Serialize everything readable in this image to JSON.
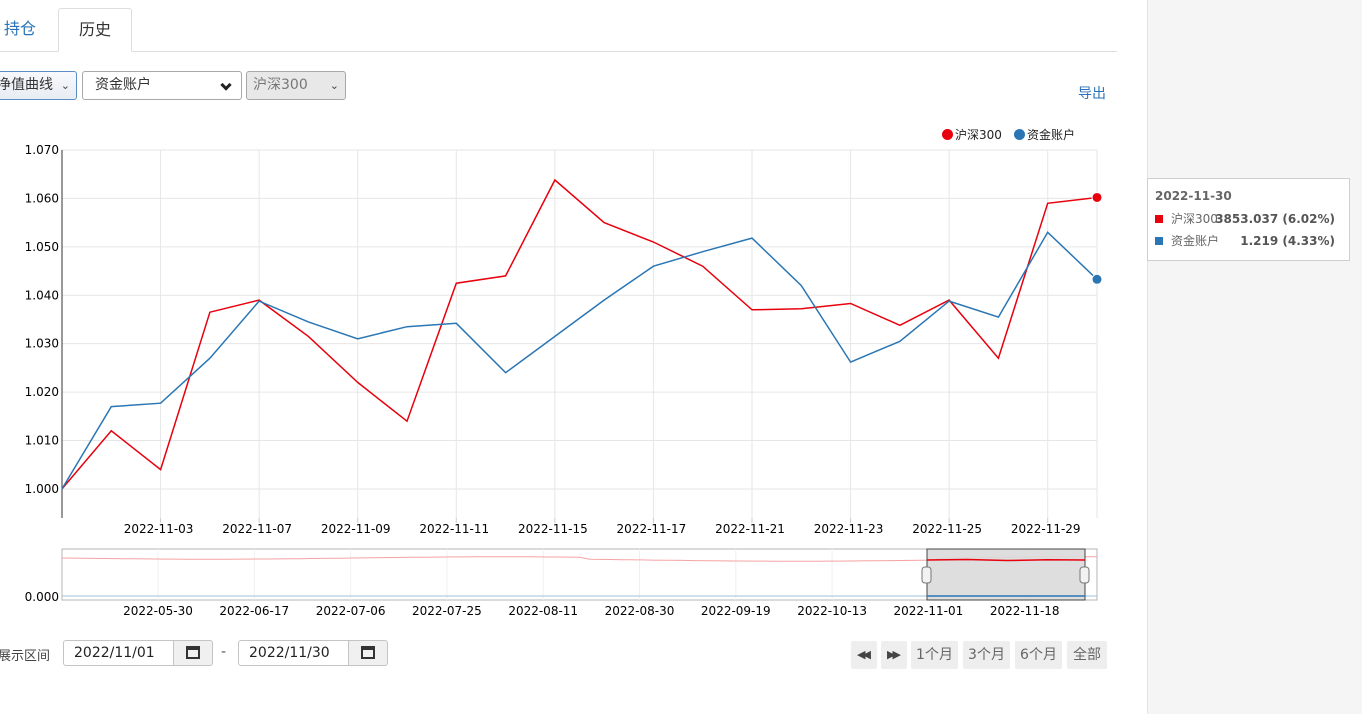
{
  "tabs": {
    "holdings": "持仓",
    "history": "历史"
  },
  "controls": {
    "curve_select": "净值曲线",
    "account_select": "资金账户",
    "index_select": "沪深300"
  },
  "export_label": "导出",
  "legend": [
    {
      "name": "沪深300",
      "color": "#e8000d"
    },
    {
      "name": "资金账户",
      "color": "#2a76b4"
    }
  ],
  "tooltip": {
    "date": "2022-11-30",
    "rows": [
      {
        "name": "沪深300",
        "value": "3853.037 (6.02%)",
        "color": "#e8000d"
      },
      {
        "name": "资金账户",
        "value": "1.219 (4.33%)",
        "color": "#2a76b4"
      }
    ]
  },
  "range": {
    "label": "展示区间",
    "start": "2022/11/01",
    "separator": "-",
    "end": "2022/11/30"
  },
  "range_buttons": {
    "back_icon": "fast-backward-icon",
    "forward_icon": "fast-forward-icon",
    "one_month": "1个月",
    "three_months": "3个月",
    "six_months": "6个月",
    "all": "全部"
  },
  "chart_data": {
    "type": "line",
    "ylim": [
      0.994,
      1.07
    ],
    "y_ticks": [
      1.0,
      1.01,
      1.02,
      1.03,
      1.04,
      1.05,
      1.06,
      1.07
    ],
    "x_tick_labels": [
      "2022-11-03",
      "2022-11-07",
      "2022-11-09",
      "2022-11-11",
      "2022-11-15",
      "2022-11-17",
      "2022-11-21",
      "2022-11-23",
      "2022-11-25",
      "2022-11-29"
    ],
    "grid": true,
    "legend_position": "top-right",
    "series": [
      {
        "name": "沪深300",
        "color": "#e8000d",
        "values": [
          1.0,
          1.012,
          1.004,
          1.0365,
          1.039,
          1.0315,
          1.022,
          1.014,
          1.0425,
          1.044,
          1.0638,
          1.055,
          1.051,
          1.046,
          1.037,
          1.0372,
          1.0383,
          1.0338,
          1.039,
          1.027,
          1.059,
          1.0602
        ]
      },
      {
        "name": "资金账户",
        "color": "#2a76b4",
        "values": [
          1.0,
          1.017,
          1.0177,
          1.027,
          1.0388,
          1.0345,
          1.031,
          1.0335,
          1.0342,
          1.024,
          1.0315,
          1.039,
          1.046,
          1.049,
          1.0518,
          1.042,
          1.0262,
          1.0305,
          1.0388,
          1.0355,
          1.053,
          1.0433
        ]
      }
    ],
    "navigator": {
      "y_tick": "0.000",
      "x_tick_labels": [
        "2022-05-30",
        "2022-06-17",
        "2022-07-06",
        "2022-07-25",
        "2022-08-11",
        "2022-08-30",
        "2022-09-19",
        "2022-10-13",
        "2022-11-01",
        "2022-11-18"
      ]
    }
  }
}
